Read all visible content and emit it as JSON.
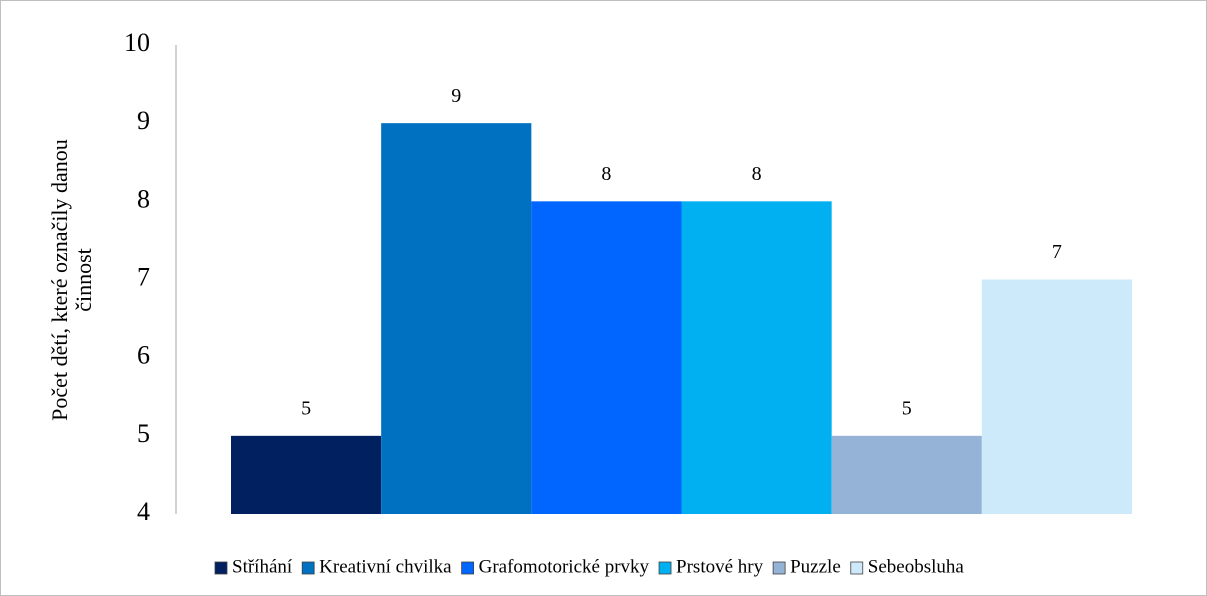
{
  "chart_data": {
    "type": "bar",
    "y_label_lines": [
      "Počet dětí, které označily danou",
      "činnost"
    ],
    "categories": [
      "Stříhání",
      "Kreativní chvilka",
      "Grafomotorické prvky",
      "Prstové hry",
      "Puzzle",
      "Sebeobsluha"
    ],
    "values": [
      5,
      9,
      8,
      8,
      5,
      7
    ],
    "colors": [
      "#002060",
      "#0070c0",
      "#0066ff",
      "#00b0f0",
      "#95b3d7",
      "#cdeafb"
    ],
    "ylim": [
      4,
      10
    ],
    "yticks": [
      4,
      5,
      6,
      7,
      8,
      9,
      10
    ],
    "grid": false,
    "legend": "bottom"
  }
}
